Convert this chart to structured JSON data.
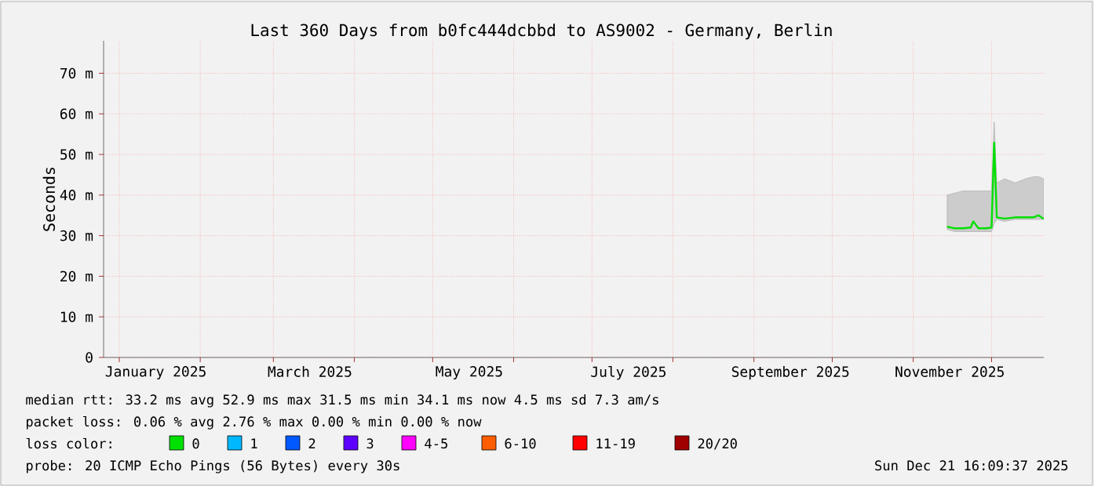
{
  "chart_data": {
    "type": "line",
    "title": "Last 360 Days from b0fc444dcbbd to AS9002 - Germany, Berlin",
    "ylabel": "Seconds",
    "xlim": [
      "2024-12-26",
      "2025-12-21"
    ],
    "xticks": [
      {
        "value": "2025-01-01",
        "label": null
      },
      {
        "value": "2025-02-01",
        "label": null
      },
      {
        "value": "2025-03-01",
        "label": null
      },
      {
        "value": "2025-04-01",
        "label": null
      },
      {
        "value": "2025-05-01",
        "label": null
      },
      {
        "value": "2025-06-01",
        "label": null
      },
      {
        "value": "2025-07-01",
        "label": null
      },
      {
        "value": "2025-08-01",
        "label": null
      },
      {
        "value": "2025-09-01",
        "label": null
      },
      {
        "value": "2025-10-01",
        "label": null
      },
      {
        "value": "2025-11-01",
        "label": null
      },
      {
        "value": "2025-12-01",
        "label": null
      },
      {
        "value": "2025-01-15",
        "label": "January 2025"
      },
      {
        "value": "2025-03-15",
        "label": "March 2025"
      },
      {
        "value": "2025-05-15",
        "label": "May 2025"
      },
      {
        "value": "2025-07-15",
        "label": "July 2025"
      },
      {
        "value": "2025-09-15",
        "label": "September 2025"
      },
      {
        "value": "2025-11-15",
        "label": "November 2025"
      }
    ],
    "ylim": [
      0,
      78
    ],
    "yticks": [
      {
        "value": 0,
        "label": "0"
      },
      {
        "value": 10,
        "label": "10 m"
      },
      {
        "value": 20,
        "label": "20 m"
      },
      {
        "value": 30,
        "label": "30 m"
      },
      {
        "value": 40,
        "label": "40 m"
      },
      {
        "value": 50,
        "label": "50 m"
      },
      {
        "value": 60,
        "label": "60 m"
      },
      {
        "value": 70,
        "label": "70 m"
      }
    ],
    "grid": true,
    "legend": "bottom",
    "legend_title": "loss color:",
    "x": [
      "2025-11-14",
      "2025-11-17",
      "2025-11-20",
      "2025-11-23",
      "2025-11-24",
      "2025-11-26",
      "2025-11-29",
      "2025-12-01",
      "2025-12-02",
      "2025-12-03",
      "2025-12-06",
      "2025-12-10",
      "2025-12-14",
      "2025-12-17",
      "2025-12-19",
      "2025-12-21"
    ],
    "series": [
      {
        "name": "0",
        "color": "#00e000",
        "values": [
          32.2,
          31.8,
          31.8,
          32.0,
          33.5,
          31.8,
          31.8,
          32.0,
          52.9,
          34.5,
          34.2,
          34.5,
          34.5,
          34.5,
          35.0,
          34.1
        ],
        "lower": [
          31.5,
          31,
          31,
          31,
          31,
          31,
          31,
          31,
          33,
          34,
          33.5,
          34,
          34,
          34,
          34,
          34
        ],
        "upper": [
          40,
          40.5,
          41,
          41,
          41,
          41,
          41,
          41,
          58,
          43,
          44,
          43,
          44,
          44.5,
          44.5,
          44
        ]
      },
      {
        "name": "1",
        "color": "#00b8ff",
        "values": [
          null,
          null,
          null,
          null,
          null,
          null,
          null,
          null,
          null,
          null,
          null,
          null,
          null,
          null,
          null,
          null
        ]
      },
      {
        "name": "2",
        "color": "#0059ff",
        "values": [
          null,
          null,
          null,
          null,
          null,
          null,
          null,
          null,
          null,
          null,
          null,
          null,
          null,
          null,
          null,
          null
        ]
      },
      {
        "name": "3",
        "color": "#5e00ff",
        "values": [
          null,
          null,
          null,
          null,
          null,
          null,
          null,
          null,
          null,
          null,
          null,
          null,
          null,
          null,
          null,
          null
        ]
      },
      {
        "name": "4-5",
        "color": "#ff00ff",
        "values": [
          null,
          null,
          null,
          null,
          null,
          null,
          null,
          null,
          null,
          null,
          null,
          null,
          null,
          null,
          null,
          null
        ]
      },
      {
        "name": "6-10",
        "color": "#ff5e00",
        "values": [
          null,
          null,
          null,
          null,
          null,
          null,
          null,
          null,
          null,
          null,
          null,
          null,
          null,
          null,
          null,
          null
        ]
      },
      {
        "name": "11-19",
        "color": "#ff0000",
        "values": [
          null,
          null,
          null,
          null,
          null,
          null,
          null,
          null,
          null,
          null,
          null,
          null,
          null,
          null,
          null,
          null
        ]
      },
      {
        "name": "20/20",
        "color": "#a10000",
        "values": [
          null,
          null,
          null,
          null,
          null,
          null,
          null,
          null,
          null,
          null,
          null,
          null,
          null,
          null,
          null,
          null
        ]
      }
    ],
    "annotations": [
      "median rtt: 33.2 ms avg 52.9 ms max 31.5 ms min 34.1 ms now 4.5 ms sd 7.3 am/s",
      "packet loss: 0.06 % avg 2.76 % max 0.00 % min 0.00 % now",
      "probe: 20 ICMP Echo Pings (56 Bytes) every 30s",
      "Sun Dec 21 16:09:37 2025"
    ]
  }
}
